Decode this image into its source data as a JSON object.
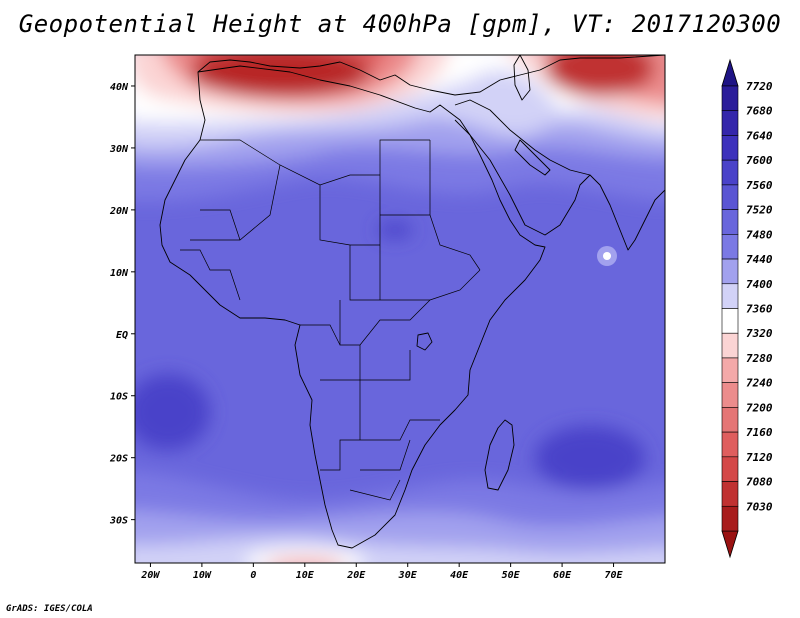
{
  "title": "Geopotential Height at 400hPa [gpm], VT: 2017120300",
  "credit": "GrADS: IGES/COLA",
  "map": {
    "variable": "Geopotential Height",
    "level": "400hPa",
    "units": "gpm",
    "valid_time": "2017120300",
    "lon_range": [
      -23,
      80
    ],
    "lat_range": [
      -37,
      45
    ],
    "x_ticks": [
      {
        "lon": -20,
        "label": "20W"
      },
      {
        "lon": -10,
        "label": "10W"
      },
      {
        "lon": 0,
        "label": "0"
      },
      {
        "lon": 10,
        "label": "10E"
      },
      {
        "lon": 20,
        "label": "20E"
      },
      {
        "lon": 30,
        "label": "30E"
      },
      {
        "lon": 40,
        "label": "40E"
      },
      {
        "lon": 50,
        "label": "50E"
      },
      {
        "lon": 60,
        "label": "60E"
      },
      {
        "lon": 70,
        "label": "70E"
      }
    ],
    "y_ticks": [
      {
        "lat": 40,
        "label": "40N"
      },
      {
        "lat": 30,
        "label": "30N"
      },
      {
        "lat": 20,
        "label": "20N"
      },
      {
        "lat": 10,
        "label": "10N"
      },
      {
        "lat": 0,
        "label": "EQ"
      },
      {
        "lat": -10,
        "label": "10S"
      },
      {
        "lat": -20,
        "label": "20S"
      },
      {
        "lat": -30,
        "label": "30S"
      }
    ]
  },
  "colorbar": {
    "levels": [
      {
        "label": "7720",
        "color": "#2b1d9a"
      },
      {
        "label": "7680",
        "color": "#3426ab"
      },
      {
        "label": "7640",
        "color": "#3d31bc"
      },
      {
        "label": "7600",
        "color": "#4a42c9"
      },
      {
        "label": "7560",
        "color": "#5a55d3"
      },
      {
        "label": "7520",
        "color": "#6966dc"
      },
      {
        "label": "7480",
        "color": "#7b79e4"
      },
      {
        "label": "7440",
        "color": "#a2a1ee"
      },
      {
        "label": "7400",
        "color": "#d2d2f7"
      },
      {
        "label": "7360",
        "color": "#ffffff"
      },
      {
        "label": "7320",
        "color": "#fbd4d4"
      },
      {
        "label": "7280",
        "color": "#f4a9a9"
      },
      {
        "label": "7240",
        "color": "#ec8c8c"
      },
      {
        "label": "7200",
        "color": "#e57575"
      },
      {
        "label": "7160",
        "color": "#df5e5e"
      },
      {
        "label": "7120",
        "color": "#d44848"
      },
      {
        "label": "7080",
        "color": "#c03131"
      },
      {
        "label": "7030",
        "color": "#a81c1c"
      }
    ],
    "top_arrow_color": "#1f1485",
    "bottom_arrow_color": "#9a1212"
  }
}
